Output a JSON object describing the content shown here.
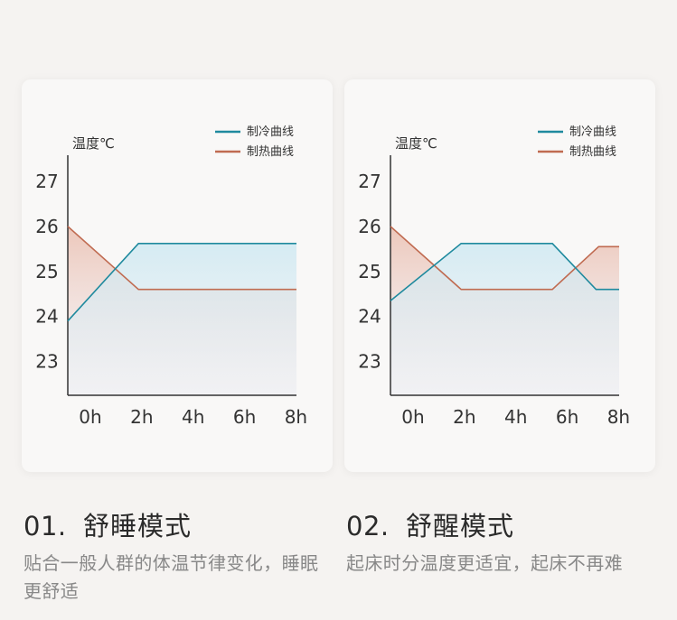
{
  "chart_data": [
    {
      "type": "area",
      "ylabel": "温度℃",
      "yticks": [
        "27",
        "26",
        "25",
        "24",
        "23"
      ],
      "ylim": [
        22.25,
        27.5
      ],
      "x_ticks": [
        "0h",
        "2h",
        "4h",
        "6h",
        "8h"
      ],
      "xlim": [
        0,
        8.9
      ],
      "series": [
        {
          "name": "制冷曲线",
          "color": "#1f8a9e",
          "points": [
            [
              0,
              23.9
            ],
            [
              2.75,
              25.62
            ],
            [
              8.9,
              25.62
            ]
          ]
        },
        {
          "name": "制热曲线",
          "color": "#c06b51",
          "points": [
            [
              0,
              26.0
            ],
            [
              2.75,
              24.6
            ],
            [
              8.9,
              24.6
            ]
          ]
        }
      ]
    },
    {
      "type": "area",
      "ylabel": "温度℃",
      "yticks": [
        "27",
        "26",
        "25",
        "24",
        "23"
      ],
      "ylim": [
        22.25,
        27.5
      ],
      "x_ticks": [
        "0h",
        "2h",
        "4h",
        "6h",
        "8h"
      ],
      "xlim": [
        0,
        8.9
      ],
      "series": [
        {
          "name": "制冷曲线",
          "color": "#1f8a9e",
          "points": [
            [
              0,
              24.35
            ],
            [
              2.75,
              25.62
            ],
            [
              6.3,
              25.62
            ],
            [
              8.0,
              24.6
            ],
            [
              8.9,
              24.6
            ]
          ]
        },
        {
          "name": "制热曲线",
          "color": "#c06b51",
          "points": [
            [
              0,
              26.0
            ],
            [
              2.75,
              24.6
            ],
            [
              6.3,
              24.6
            ],
            [
              8.1,
              25.55
            ],
            [
              8.9,
              25.55
            ]
          ]
        }
      ]
    }
  ],
  "cards": [
    {
      "number": "01.",
      "title": "舒睡模式",
      "description": "贴合一般人群的体温节律变化，睡眠更舒适"
    },
    {
      "number": "02.",
      "title": "舒醒模式",
      "description": "起床时分温度更适宜，起床不再难"
    }
  ]
}
